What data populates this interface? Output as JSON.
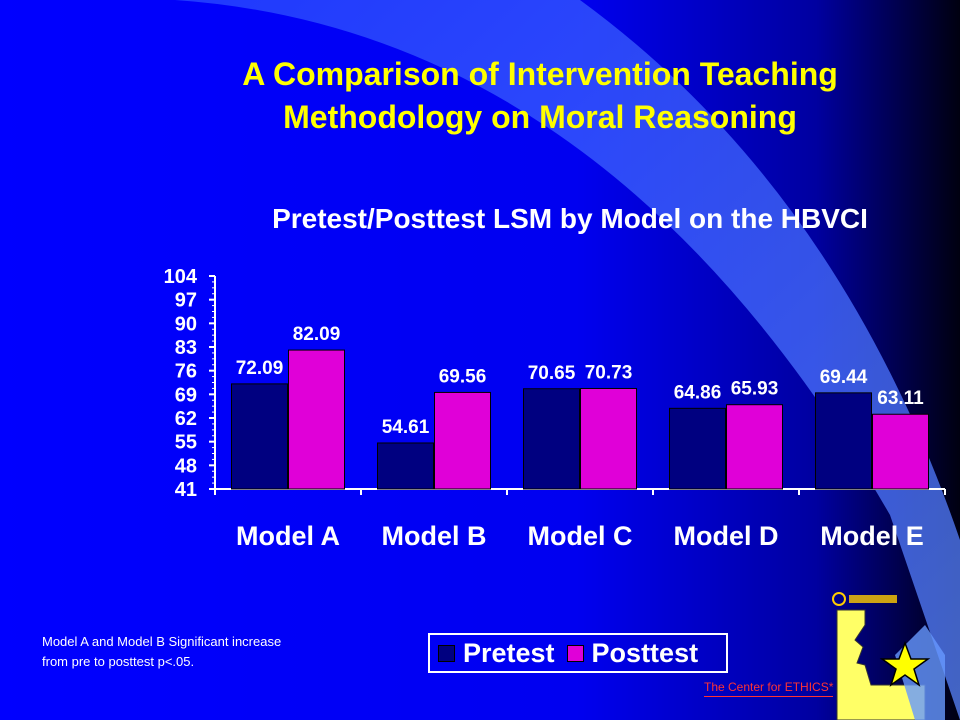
{
  "slide": {
    "title_line1": "A Comparison of Intervention Teaching",
    "title_line2": "Methodology on Moral Reasoning",
    "note_line1": "Model A and Model B Significant increase",
    "note_line2": "from pre to posttest p<.05.",
    "logo_caption": "The Center for ETHICS*"
  },
  "colors": {
    "background": "#0000ff",
    "title": "#ffff00",
    "pretest": "#000080",
    "posttest": "#e000d8"
  },
  "icons": [
    "university-logo-icon",
    "state-map-icon",
    "yellow-star-icon"
  ],
  "chart_data": {
    "type": "bar",
    "title": "Pretest/Posttest LSM by Model on the HBVCI",
    "categories": [
      "Model A",
      "Model B",
      "Model C",
      "Model D",
      "Model E"
    ],
    "series": [
      {
        "name": "Pretest",
        "values": [
          72.09,
          54.61,
          70.65,
          64.86,
          69.44
        ],
        "labels": [
          "72.09",
          "54.61",
          "70.65",
          "64.86",
          "69.44"
        ]
      },
      {
        "name": "Posttest",
        "values": [
          82.09,
          69.56,
          70.73,
          65.93,
          63.11
        ],
        "labels": [
          "82.09",
          "69.56",
          "70.73",
          "65.93",
          "63.11"
        ]
      }
    ],
    "yticks": [
      41,
      48,
      55,
      62,
      69,
      76,
      83,
      90,
      97,
      104
    ],
    "ylim": [
      41,
      104
    ],
    "xlabel": "",
    "ylabel": "",
    "legend": "bottom"
  }
}
